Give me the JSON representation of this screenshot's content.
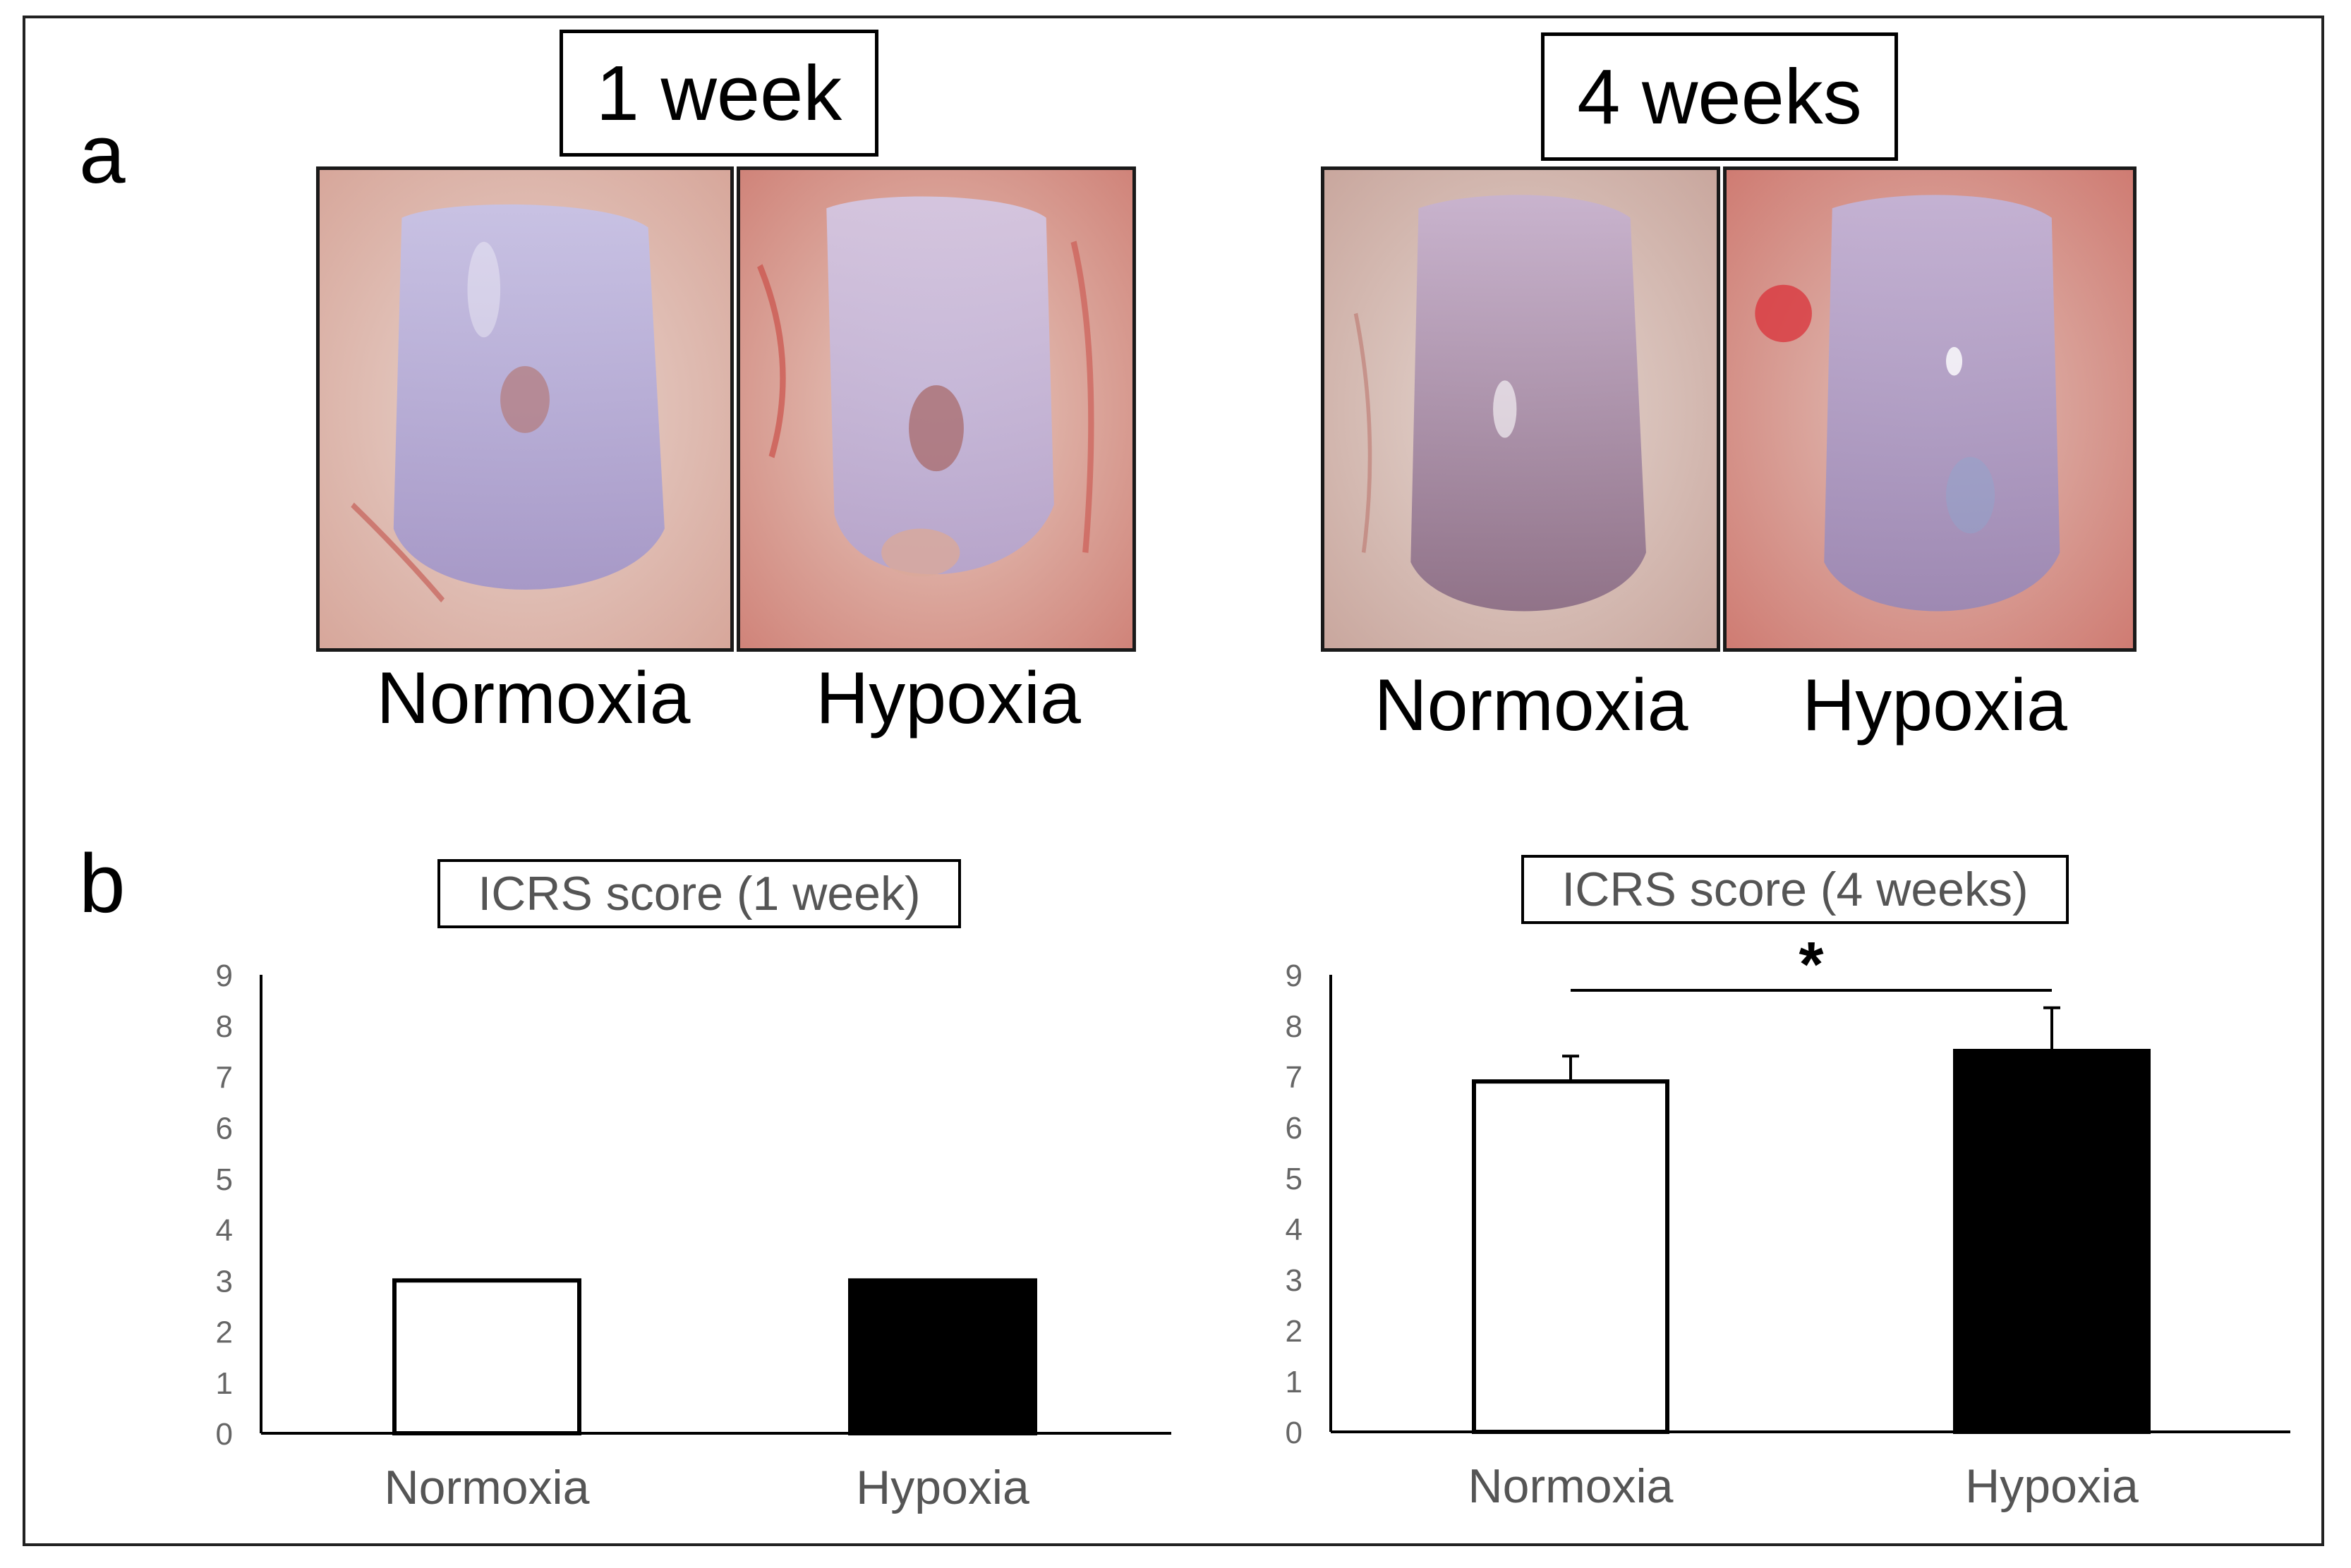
{
  "panels": {
    "a": {
      "letter": "a",
      "groups": [
        {
          "time_label": "1 week",
          "conditions": [
            "Normoxia",
            "Hypoxia"
          ]
        },
        {
          "time_label": "4 weeks",
          "conditions": [
            "Normoxia",
            "Hypoxia"
          ]
        }
      ]
    },
    "b": {
      "letter": "b"
    }
  },
  "colors": {
    "normoxia_bar": "#ffffff",
    "hypoxia_bar": "#000000",
    "bar_outline": "#000000",
    "axis_text": "#666666"
  },
  "chart_data": [
    {
      "type": "bar",
      "title": "ICRS score (1 week)",
      "categories": [
        "Normoxia",
        "Hypoxia"
      ],
      "values": [
        3,
        3
      ],
      "errors": [
        0,
        0
      ],
      "ylim": [
        0,
        9
      ],
      "yticks": [
        "0",
        "1",
        "2",
        "3",
        "4",
        "5",
        "6",
        "7",
        "8",
        "9"
      ],
      "xlabel": "",
      "ylabel": "",
      "grid": false,
      "significance": null
    },
    {
      "type": "bar",
      "title": "ICRS score (4 weeks)",
      "categories": [
        "Normoxia",
        "Hypoxia"
      ],
      "values": [
        6.9,
        7.5
      ],
      "errors": [
        0.5,
        0.85
      ],
      "ylim": [
        0,
        9
      ],
      "yticks": [
        "0",
        "1",
        "2",
        "3",
        "4",
        "5",
        "6",
        "7",
        "8",
        "9"
      ],
      "xlabel": "",
      "ylabel": "",
      "grid": false,
      "significance": "*"
    }
  ]
}
